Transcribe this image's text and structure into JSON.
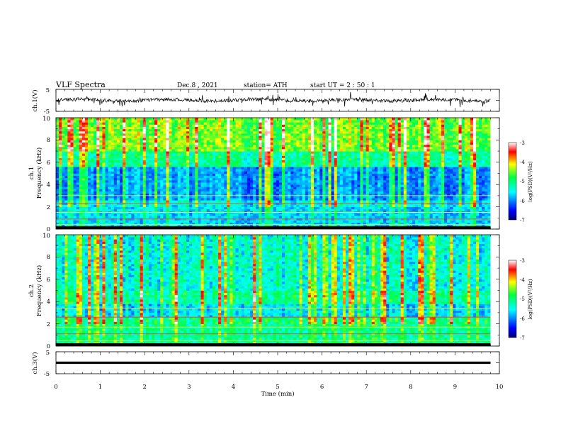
{
  "header": {
    "title": "VLF  Spectra",
    "date": "Dec.8  , 2021",
    "station": "station= ATH",
    "start": "start  UT  =   2  : 50 : 1"
  },
  "colorbar": {
    "label": "log(PSD)(V²/Hz)",
    "ticks": [
      "-3",
      "-4",
      "-5",
      "-6",
      "-7"
    ],
    "range": [
      -7,
      -3
    ]
  },
  "chart_data": [
    {
      "type": "line",
      "name": "ch1-waveform",
      "ylabel": "ch.1(V)",
      "ylim": [
        -5,
        5
      ],
      "yticks": [
        "5",
        "-5"
      ],
      "xlim": [
        0,
        10
      ],
      "baseline": 0.1,
      "data_end_min": 9.8
    },
    {
      "type": "heatmap",
      "name": "ch1-spectrogram",
      "ylabel": "ch.1",
      "ylabel2": "Frequency  (kHz)",
      "ylim": [
        0,
        10
      ],
      "yticks": [
        "0",
        "2",
        "4",
        "6",
        "8",
        "10"
      ],
      "xlim": [
        0,
        10
      ],
      "zrange": [
        -7,
        -3
      ],
      "data_end_min": 9.8
    },
    {
      "type": "heatmap",
      "name": "ch2-spectrogram",
      "ylabel": "ch.2",
      "ylabel2": "Frequency  (kHz)",
      "ylim": [
        0,
        10
      ],
      "yticks": [
        "0",
        "2",
        "4",
        "6",
        "8",
        "10"
      ],
      "xlim": [
        0,
        10
      ],
      "zrange": [
        -7,
        -3
      ],
      "data_end_min": 9.8
    },
    {
      "type": "line",
      "name": "ch3-waveform",
      "ylabel": "ch.3(V)",
      "ylim": [
        -5,
        5
      ],
      "yticks": [
        "5",
        "-5"
      ],
      "xlim": [
        0,
        10
      ],
      "baseline": 0,
      "data_end_min": 9.8
    }
  ],
  "xaxis": {
    "label": "Time  (min)",
    "ticks": [
      "0",
      "1",
      "2",
      "3",
      "4",
      "5",
      "6",
      "7",
      "8",
      "9",
      "10"
    ],
    "range": [
      0,
      10
    ]
  }
}
